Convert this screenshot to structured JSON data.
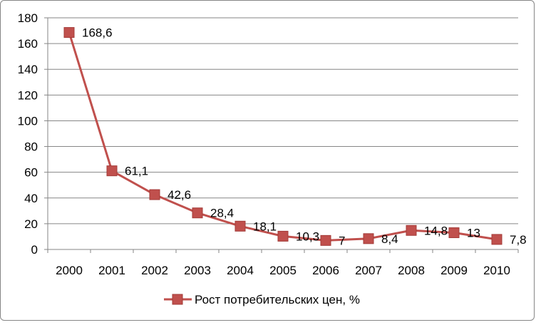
{
  "chart_data": {
    "type": "line",
    "categories": [
      "2000",
      "2001",
      "2002",
      "2003",
      "2004",
      "2005",
      "2006",
      "2007",
      "2008",
      "2009",
      "2010"
    ],
    "series": [
      {
        "name": "Рост потребительских цен, %",
        "values": [
          168.6,
          61.1,
          42.6,
          28.4,
          18.1,
          10.3,
          7,
          8.4,
          14.8,
          13,
          7.8
        ],
        "data_labels": [
          "168,6",
          "61,1",
          "42,6",
          "28,4",
          "18,1",
          "10,3",
          "7",
          "8,4",
          "14,8",
          "13",
          "7,8"
        ],
        "color": "#c0504d",
        "marker_color": "#c0504d",
        "marker_edge": "#a33b38",
        "marker": "square"
      }
    ],
    "ylim": [
      0,
      180
    ],
    "yticks": [
      0,
      20,
      40,
      60,
      80,
      100,
      120,
      140,
      160,
      180
    ],
    "ytick_labels": [
      "0",
      "20",
      "40",
      "60",
      "80",
      "100",
      "120",
      "140",
      "160",
      "180"
    ],
    "grid": true,
    "legend": "bottom",
    "title": "",
    "xlabel": "",
    "ylabel": ""
  }
}
